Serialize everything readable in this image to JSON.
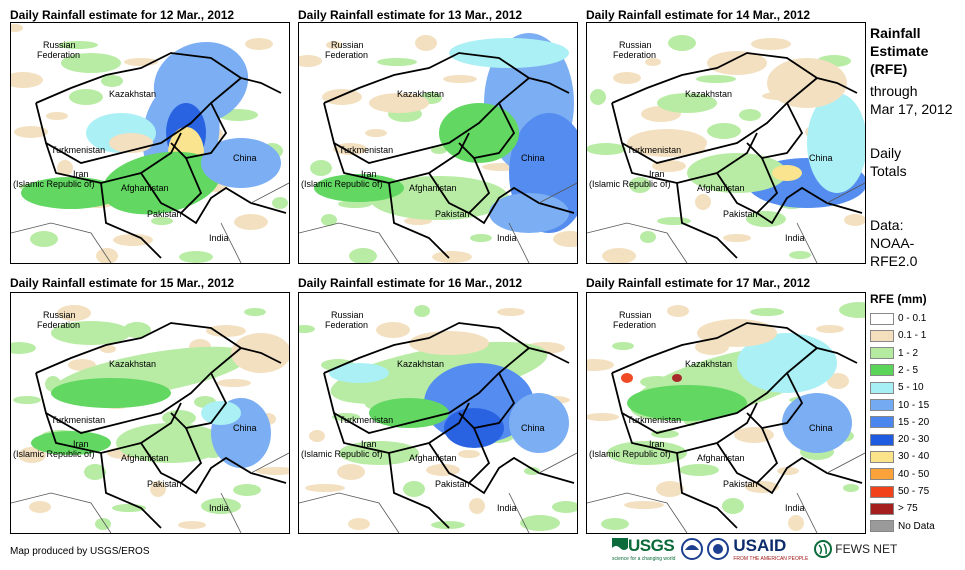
{
  "panels": [
    {
      "title": "Daily Rainfall estimate for 12 Mar., 2012"
    },
    {
      "title": "Daily Rainfall estimate for 13 Mar., 2012"
    },
    {
      "title": "Daily Rainfall estimate for 14 Mar., 2012"
    },
    {
      "title": "Daily Rainfall estimate for 15 Mar., 2012"
    },
    {
      "title": "Daily Rainfall estimate for 16 Mar., 2012"
    },
    {
      "title": "Daily Rainfall estimate for 17 Mar., 2012"
    }
  ],
  "map_labels": {
    "russia_1": "Russian",
    "russia_2": "Federation",
    "kazakhstan": "Kazakhstan",
    "turkmenistan": "Turkmenistan",
    "iran_1": "Iran",
    "iran_2": "(Islamic Republic of)",
    "afghanistan": "Afghanistan",
    "pakistan": "Pakistan",
    "china": "China",
    "india": "India"
  },
  "side": {
    "line1": "Rainfall",
    "line2": "Estimate",
    "line3": "(RFE)",
    "line4": "through",
    "line5": "Mar 17, 2012",
    "line6": "Daily",
    "line7": "Totals",
    "line8": "Data:",
    "line9": "NOAA-",
    "line10": "RFE2.0"
  },
  "legend": {
    "title": "RFE (mm)",
    "items": [
      {
        "label": "0 - 0.1",
        "color": "#ffffff"
      },
      {
        "label": "0.1 - 1",
        "color": "#f3dfbd"
      },
      {
        "label": "1 - 2",
        "color": "#b5eba0"
      },
      {
        "label": "2 - 5",
        "color": "#5ad55a"
      },
      {
        "label": "5 - 10",
        "color": "#a6f0f5"
      },
      {
        "label": "10 - 15",
        "color": "#74aaf2"
      },
      {
        "label": "15 - 20",
        "color": "#4b86ef"
      },
      {
        "label": "20 - 30",
        "color": "#1f5be0"
      },
      {
        "label": "30 - 40",
        "color": "#fbe38a"
      },
      {
        "label": "40 - 50",
        "color": "#fba33a"
      },
      {
        "label": "50 - 75",
        "color": "#f1421a"
      },
      {
        "label": "> 75",
        "color": "#a51f1f"
      },
      {
        "label": "No Data",
        "color": "#9a9a9a"
      }
    ]
  },
  "footer": {
    "credit": "Map produced by USGS/EROS"
  },
  "logos": {
    "usgs": "USGS",
    "usgs_tag": "science for a changing world",
    "usaid": "USAID",
    "usaid_tag": "FROM THE AMERICAN PEOPLE",
    "fewsnet": "FEWS NET"
  }
}
